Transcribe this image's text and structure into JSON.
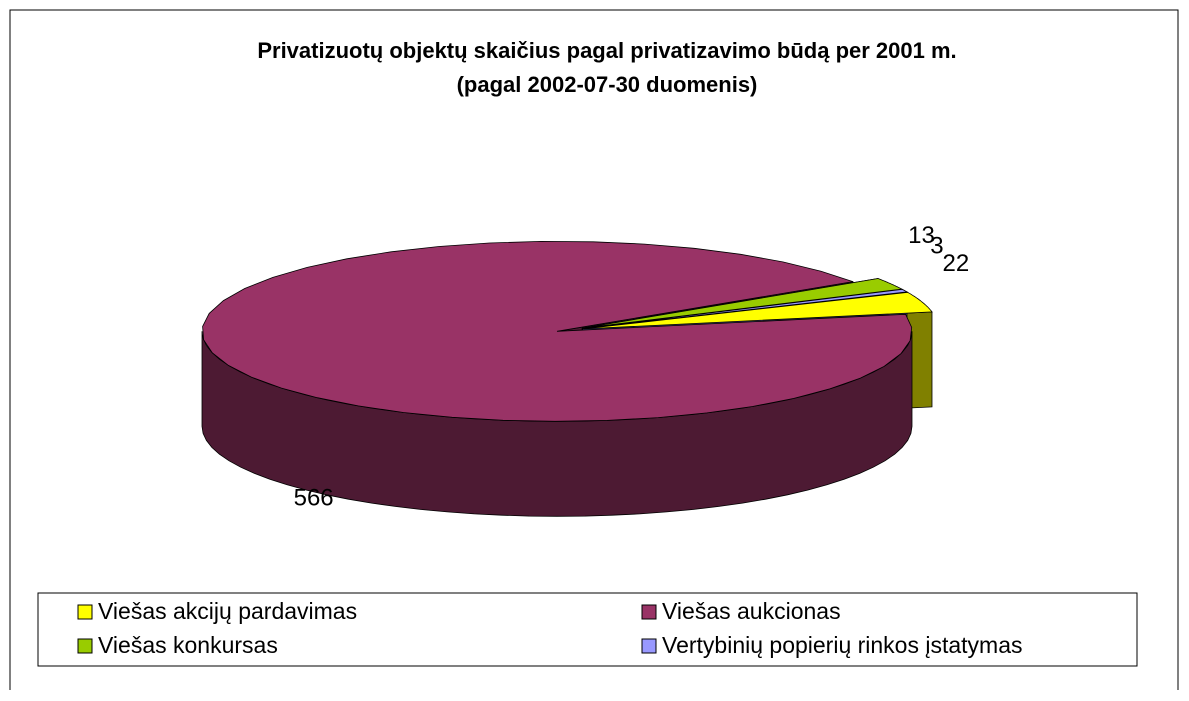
{
  "chart_data": {
    "type": "pie3d",
    "title": "Privatizuotų objektų skaičius pagal privatizavimo būdą per 2001 m.",
    "subtitle": "(pagal 2002-07-30 duomenis)",
    "categories": [
      "Viešas akcijų pardavimas",
      "Viešas aukcionas",
      "Viešas konkursas",
      "Vertybinių popierių rinkos įstatymas"
    ],
    "values": [
      22,
      566,
      13,
      3
    ],
    "colors": [
      "#ffff00",
      "#993366",
      "#99cc00",
      "#9999ff"
    ],
    "legend": "bottom"
  }
}
